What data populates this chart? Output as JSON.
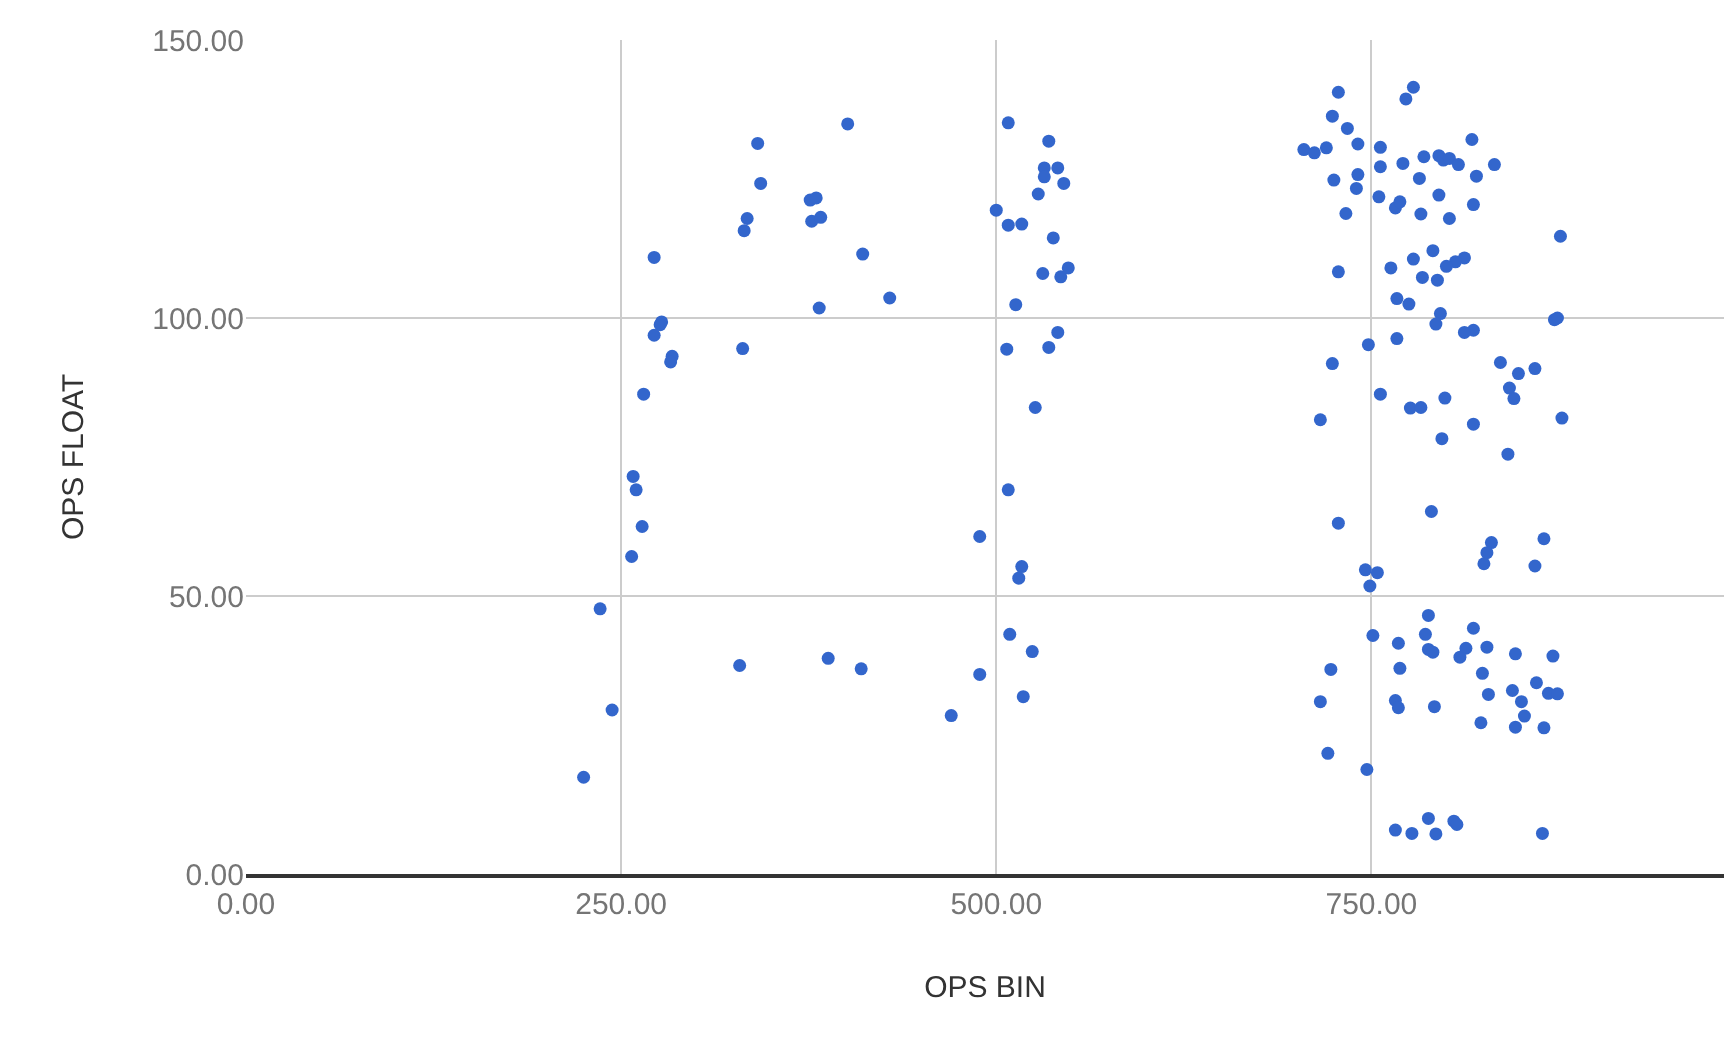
{
  "chart_data": {
    "type": "scatter",
    "xlabel": "OPS BIN",
    "ylabel": "OPS FLOAT",
    "xlim": [
      0,
      985
    ],
    "ylim": [
      0,
      150
    ],
    "xticks": [
      {
        "value": 0,
        "label": "0.00"
      },
      {
        "value": 250,
        "label": "250.00"
      },
      {
        "value": 500,
        "label": "500.00"
      },
      {
        "value": 750,
        "label": "750.00"
      }
    ],
    "yticks": [
      {
        "value": 0,
        "label": "0.00"
      },
      {
        "value": 50,
        "label": "50.00"
      },
      {
        "value": 100,
        "label": "100.00"
      },
      {
        "value": 150,
        "label": "150.00"
      }
    ],
    "grid": true,
    "marker": "circle",
    "series": [
      {
        "color": "#3366cc",
        "x": [
          401,
          341,
          343,
          376,
          380,
          334,
          332,
          377,
          383,
          272,
          411,
          429,
          382,
          277,
          276,
          272,
          331,
          284,
          283,
          265,
          258,
          260,
          264,
          257,
          236,
          329,
          388,
          410,
          244,
          225,
          508,
          535,
          532,
          541,
          532,
          545,
          528,
          500,
          508,
          517,
          538,
          531,
          543,
          548,
          513,
          541,
          507,
          535,
          526,
          508,
          489,
          517,
          515,
          509,
          524,
          489,
          518,
          470,
          728,
          724,
          734,
          741,
          705,
          712,
          720,
          756,
          756,
          741,
          725,
          740,
          755,
          733,
          728,
          763,
          767,
          748,
          767,
          724,
          756,
          716,
          728,
          746,
          754,
          749,
          751,
          768,
          723,
          769,
          716,
          766,
          768,
          721,
          747,
          766,
          766,
          778,
          773,
          817,
          771,
          785,
          795,
          798,
          802,
          808,
          832,
          820,
          782,
          795,
          769,
          818,
          783,
          802,
          876,
          791,
          778,
          812,
          806,
          800,
          784,
          794,
          775,
          796,
          793,
          818,
          812,
          872,
          874,
          836,
          848,
          859,
          842,
          845,
          799,
          776,
          783,
          818,
          877,
          797,
          841,
          790,
          830,
          827,
          825,
          865,
          859,
          788,
          786,
          818,
          788,
          791,
          813,
          809,
          827,
          846,
          871,
          824,
          860,
          828,
          844,
          850,
          868,
          874,
          792,
          823,
          852,
          846,
          865,
          788,
          777,
          793,
          805,
          807,
          864
        ],
        "values": [
          134.9,
          131.4,
          124.2,
          121.2,
          121.6,
          117.9,
          115.7,
          117.4,
          118.1,
          110.9,
          111.5,
          103.6,
          101.8,
          99.3,
          98.8,
          96.9,
          94.5,
          93.1,
          92.1,
          86.3,
          71.5,
          69.1,
          62.5,
          57.1,
          47.7,
          37.5,
          38.8,
          36.9,
          29.5,
          17.4,
          135.1,
          131.8,
          127.0,
          127.0,
          125.4,
          124.2,
          122.3,
          119.4,
          116.7,
          116.9,
          114.4,
          108.0,
          107.4,
          109.0,
          102.4,
          97.4,
          94.4,
          94.7,
          83.9,
          69.1,
          60.7,
          55.3,
          53.2,
          43.1,
          40.0,
          35.9,
          31.9,
          28.5,
          140.6,
          136.3,
          134.1,
          131.3,
          130.3,
          129.7,
          130.6,
          130.7,
          127.2,
          125.8,
          124.8,
          123.3,
          121.8,
          118.8,
          108.3,
          109.0,
          103.5,
          95.2,
          96.3,
          91.8,
          86.3,
          81.7,
          63.1,
          54.7,
          54.2,
          51.8,
          42.9,
          41.5,
          36.8,
          37.0,
          31.0,
          31.2,
          29.9,
          21.7,
          18.8,
          7.9,
          119.8,
          141.5,
          139.4,
          132.1,
          127.8,
          129.0,
          129.2,
          128.4,
          128.7,
          127.6,
          127.6,
          125.5,
          125.1,
          122.1,
          120.9,
          120.4,
          118.7,
          117.9,
          114.7,
          112.1,
          110.6,
          110.8,
          110.1,
          109.3,
          107.3,
          106.8,
          102.5,
          100.8,
          98.9,
          97.8,
          97.4,
          99.7,
          100.0,
          92.0,
          90.0,
          90.9,
          87.4,
          85.5,
          85.6,
          83.8,
          83.9,
          80.9,
          82.0,
          78.3,
          75.5,
          65.2,
          59.6,
          57.8,
          55.8,
          60.3,
          55.4,
          46.5,
          43.1,
          44.2,
          40.4,
          39.9,
          40.6,
          39.0,
          40.8,
          39.6,
          39.2,
          36.1,
          34.4,
          32.3,
          33.0,
          31.0,
          32.5,
          32.4,
          30.1,
          27.2,
          28.4,
          26.4,
          26.3,
          10.0,
          7.3,
          7.2,
          9.5,
          8.9,
          7.3
        ]
      }
    ]
  }
}
